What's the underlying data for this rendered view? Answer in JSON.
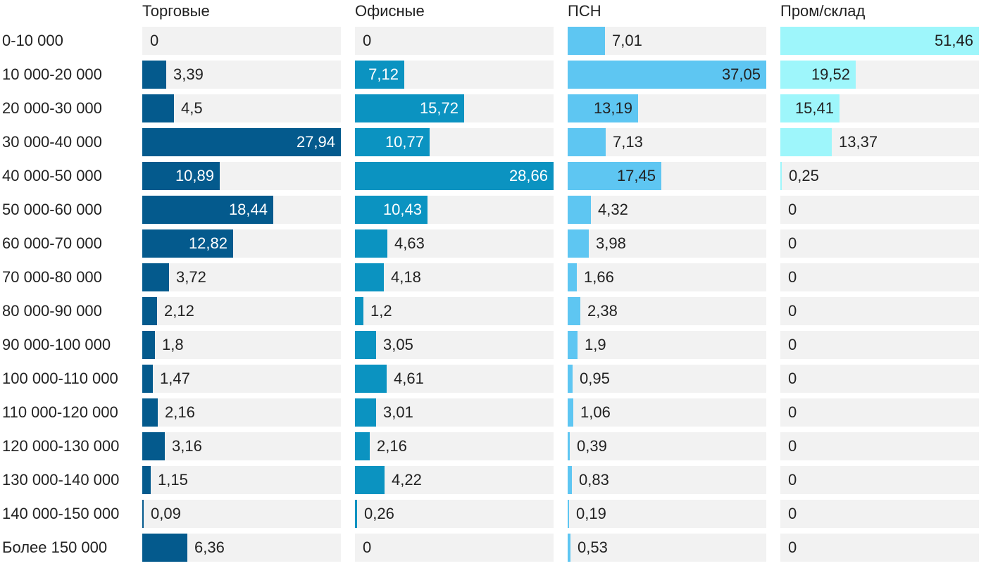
{
  "chart_data": {
    "type": "bar",
    "orientation": "horizontal",
    "layout": "small-multiples",
    "title": "",
    "categories": [
      "0-10 000",
      "10 000-20 000",
      "20 000-30 000",
      "30 000-40 000",
      "40 000-50 000",
      "50 000-60 000",
      "60 000-70 000",
      "70 000-80 000",
      "80 000-90 000",
      "90 000-100 000",
      "100 000-110 000",
      "110 000-120 000",
      "120 000-130 000",
      "130 000-140 000",
      "140 000-150 000",
      "Более 150 000"
    ],
    "series": [
      {
        "name": "Торговые",
        "color": "#045a8d",
        "label_color": "#ffffff",
        "xlim": [
          0,
          27.94
        ],
        "values": [
          0,
          3.39,
          4.5,
          27.94,
          10.89,
          18.44,
          12.82,
          3.72,
          2.12,
          1.8,
          1.47,
          2.16,
          3.16,
          1.15,
          0.09,
          6.36
        ],
        "labels": [
          "0",
          "3,39",
          "4,5",
          "27,94",
          "10,89",
          "18,44",
          "12,82",
          "3,72",
          "2,12",
          "1,8",
          "1,47",
          "2,16",
          "3,16",
          "1,15",
          "0,09",
          "6,36"
        ]
      },
      {
        "name": "Офисные",
        "color": "#0b93c1",
        "label_color": "#ffffff",
        "xlim": [
          0,
          28.66
        ],
        "values": [
          0,
          7.12,
          15.72,
          10.77,
          28.66,
          10.43,
          4.63,
          4.18,
          1.2,
          3.05,
          4.61,
          3.01,
          2.16,
          4.22,
          0.26,
          0
        ],
        "labels": [
          "0",
          "7,12",
          "15,72",
          "10,77",
          "28,66",
          "10,43",
          "4,63",
          "4,18",
          "1,2",
          "3,05",
          "4,61",
          "3,01",
          "2,16",
          "4,22",
          "0,26",
          "0"
        ]
      },
      {
        "name": "ПСН",
        "color": "#5ec6f2",
        "label_color": "#222222",
        "xlim": [
          0,
          37.05
        ],
        "values": [
          7.01,
          37.05,
          13.19,
          7.13,
          17.45,
          4.32,
          3.98,
          1.66,
          2.38,
          1.9,
          0.95,
          1.06,
          0.39,
          0.83,
          0.19,
          0.53
        ],
        "labels": [
          "7,01",
          "37,05",
          "13,19",
          "7,13",
          "17,45",
          "4,32",
          "3,98",
          "1,66",
          "2,38",
          "1,9",
          "0,95",
          "1,06",
          "0,39",
          "0,83",
          "0,19",
          "0,53"
        ]
      },
      {
        "name": "Пром/склад",
        "color": "#9ef6fb",
        "label_color": "#222222",
        "xlim": [
          0,
          51.46
        ],
        "values": [
          51.46,
          19.52,
          15.41,
          13.37,
          0.25,
          0,
          0,
          0,
          0,
          0,
          0,
          0,
          0,
          0,
          0,
          0
        ],
        "labels": [
          "51,46",
          "19,52",
          "15,41",
          "13,37",
          "0,25",
          "0",
          "0",
          "0",
          "0",
          "0",
          "0",
          "0",
          "0",
          "0",
          "0",
          "0"
        ]
      }
    ]
  }
}
